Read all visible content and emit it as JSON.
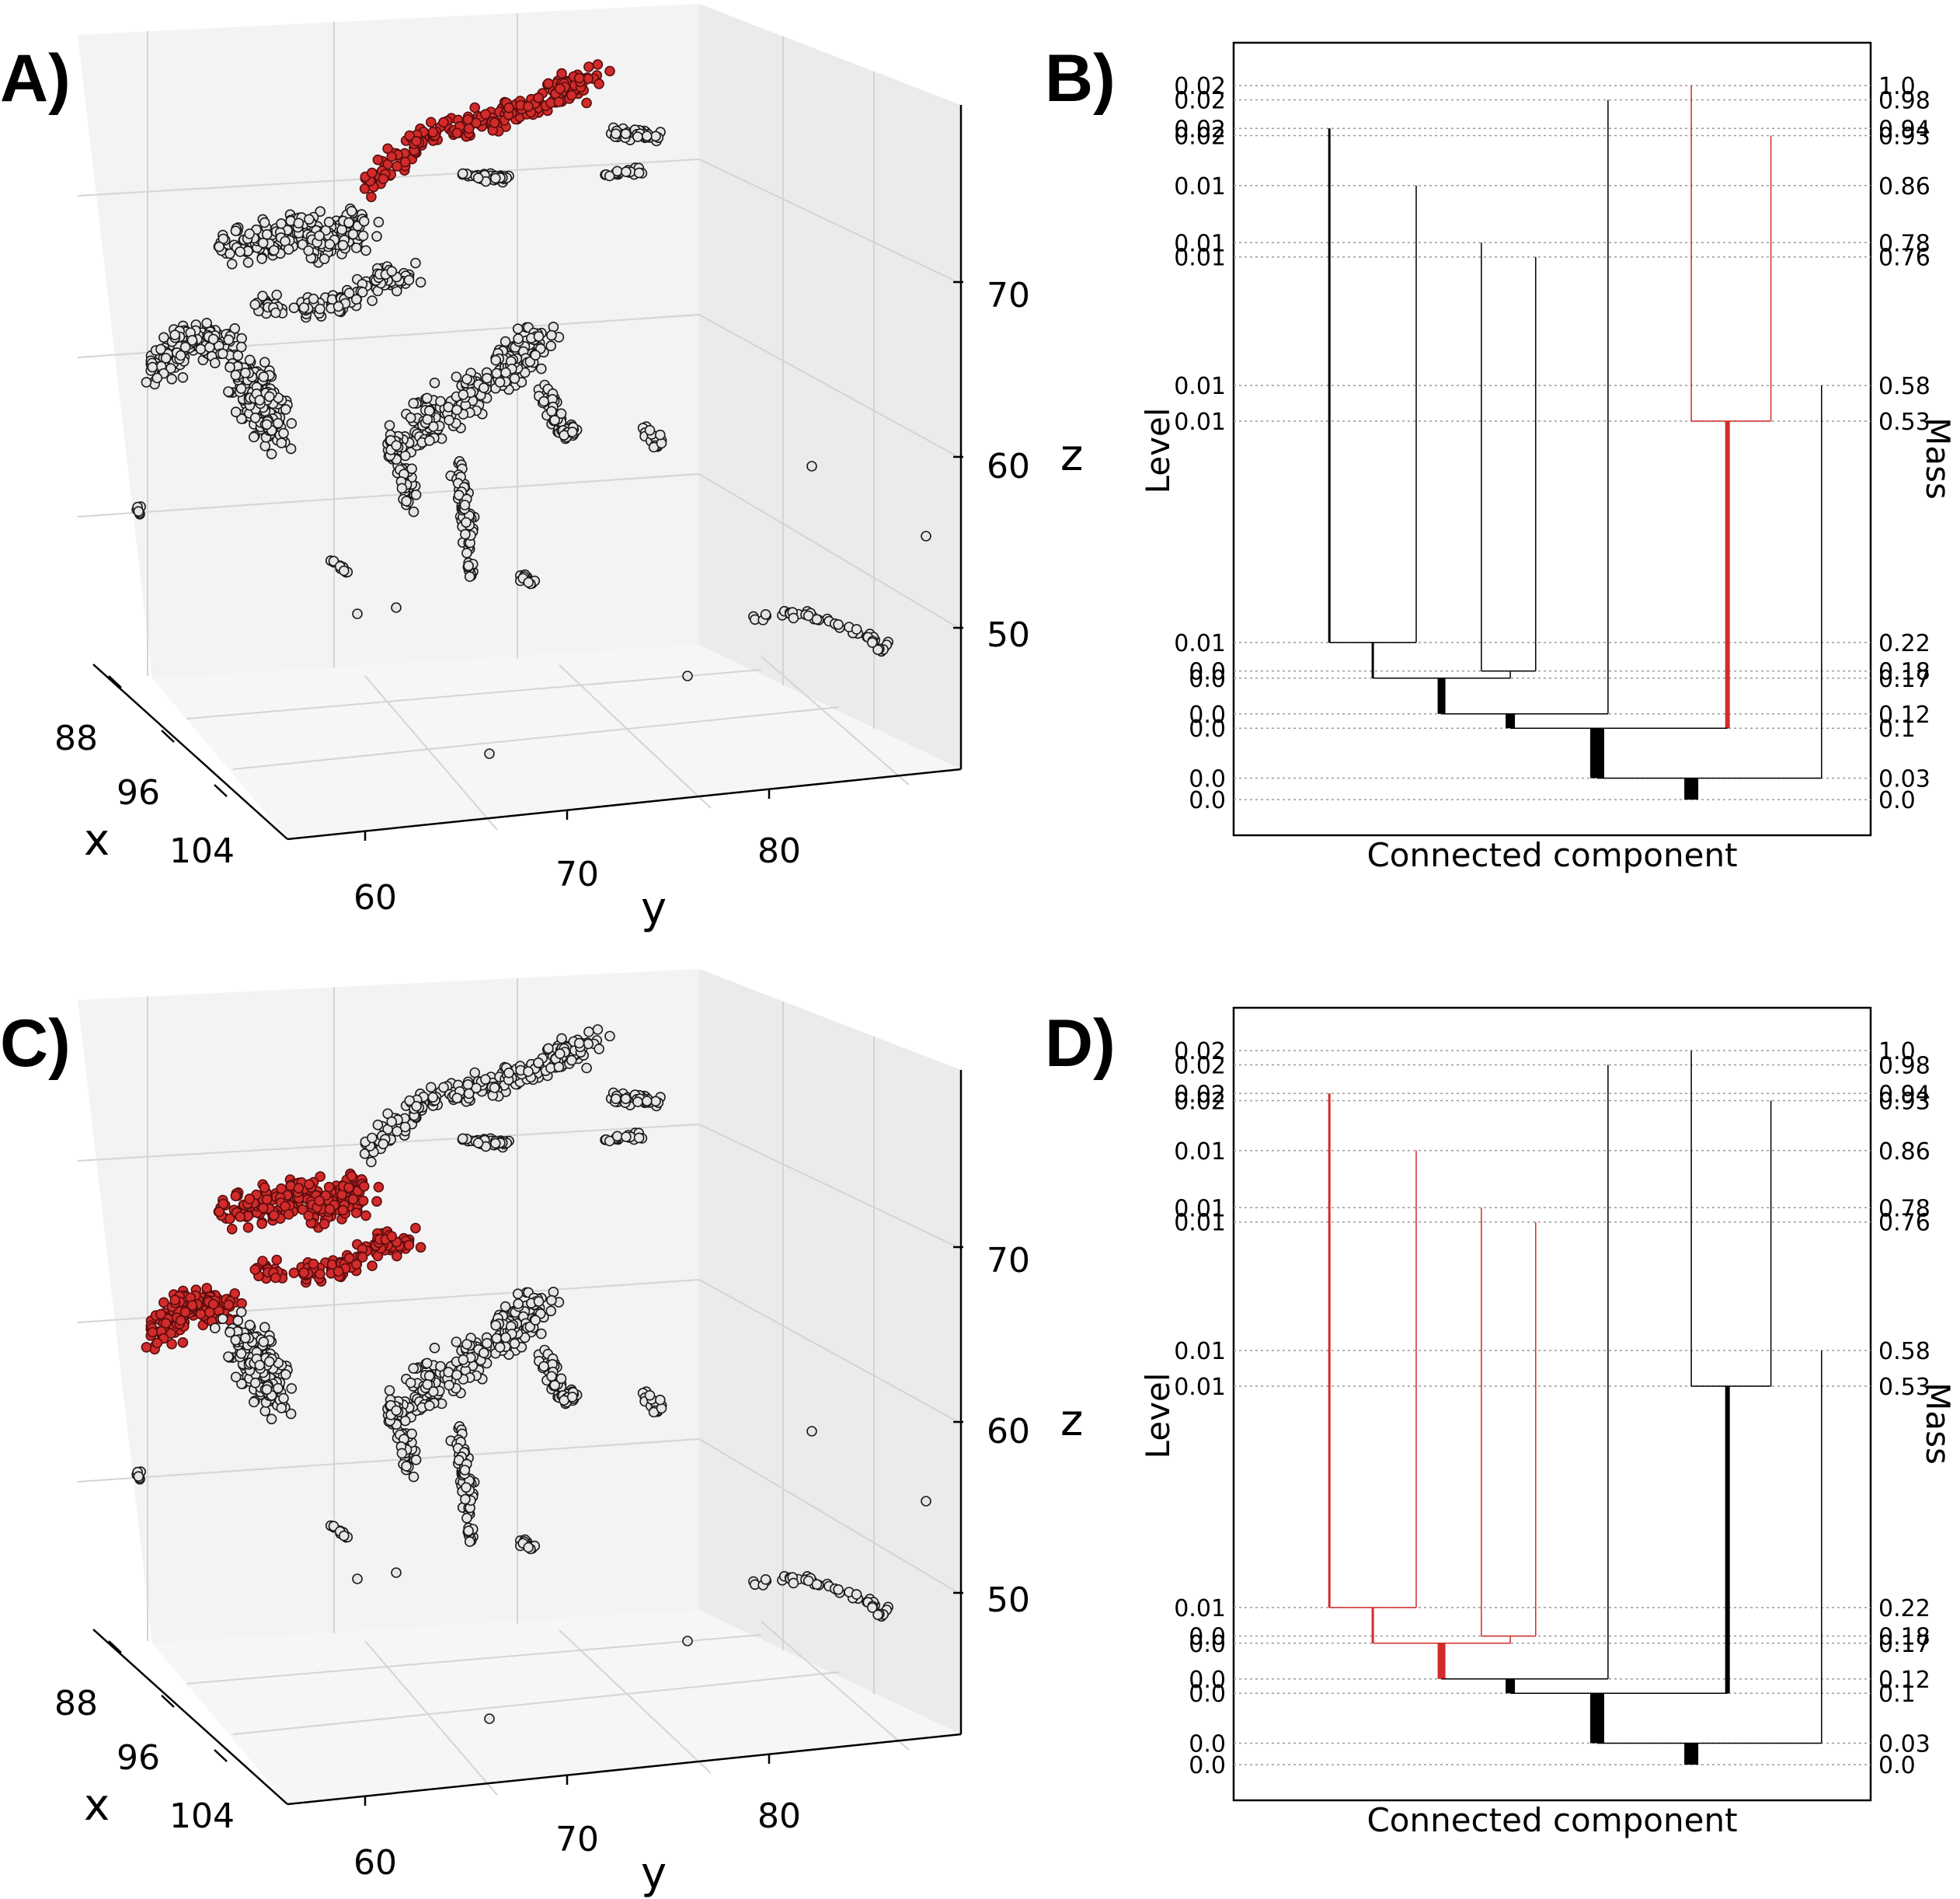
{
  "colors": {
    "highlight": "#d22b2b",
    "highlight_edge": "#5a0d0d",
    "point_fill": "#e6e6e6",
    "point_edge": "#1a1a1a",
    "pane_left": "#f3f3f3",
    "pane_right": "#ebebeb",
    "pane_floor": "#f6f6f6",
    "grid": "#d4d4d4",
    "line": "#000000",
    "dotted": "#9a9a9a"
  },
  "chart_data": [
    {
      "id": "A",
      "panel_label": "A)",
      "type": "scatter",
      "projection": "3d",
      "xlabel": "x",
      "ylabel": "y",
      "zlabel": "z",
      "x_ticks": [
        "88",
        "96",
        "104"
      ],
      "y_ticks": [
        "60",
        "70",
        "80"
      ],
      "z_ticks": [
        "70",
        "60",
        "50"
      ],
      "highlight_cluster": "top-right ridge"
    },
    {
      "id": "B",
      "panel_label": "B)",
      "type": "dendrogram",
      "title": "",
      "xlabel": "Connected component",
      "ylabel_left": "Level",
      "ylabel_right": "Mass",
      "level_ticks": [
        "0.02",
        "0.02",
        "0.02",
        "0.02",
        "0.01",
        "0.01",
        "0.01",
        "0.01",
        "0.01",
        "0.01",
        "0.0",
        "0.0",
        "0.0",
        "0.0",
        "0.0",
        "0.0"
      ],
      "mass_ticks": [
        "1.0",
        "0.98",
        "0.94",
        "0.93",
        "0.86",
        "0.78",
        "0.76",
        "0.58",
        "0.53",
        "0.22",
        "0.18",
        "0.17",
        "0.12",
        "0.1",
        "0.03",
        "0.0"
      ],
      "mass_values": [
        1.0,
        0.98,
        0.94,
        0.93,
        0.86,
        0.78,
        0.76,
        0.58,
        0.53,
        0.22,
        0.18,
        0.17,
        0.12,
        0.1,
        0.03,
        0.0
      ],
      "mass_range": [
        1.06,
        -0.05
      ],
      "highlight_branch": "right subtree merging at mass 0.1",
      "nodes": [
        {
          "id": "L1",
          "x": 1.0,
          "m0": 0.22,
          "m1": 0.94,
          "w": 3
        },
        {
          "id": "L2",
          "x": 2.2,
          "m0": 0.22,
          "m1": 0.86,
          "w": 1.5
        },
        {
          "id": "L3",
          "x": 3.1,
          "m0": 0.18,
          "m1": 0.78,
          "w": 1.5
        },
        {
          "id": "L4",
          "x": 3.85,
          "m0": 0.18,
          "m1": 0.76,
          "w": 1.5
        },
        {
          "id": "L5",
          "x": 4.85,
          "m0": 0.12,
          "m1": 0.98,
          "w": 1.5
        },
        {
          "id": "L6",
          "x": 6.0,
          "m0": 0.53,
          "m1": 1.0,
          "w": 1.5,
          "hl": true
        },
        {
          "id": "L7",
          "x": 7.1,
          "m0": 0.53,
          "m1": 0.93,
          "w": 1.5,
          "hl": true
        },
        {
          "id": "L8",
          "x": 7.8,
          "m0": 0.03,
          "m1": 0.58,
          "w": 1.5
        },
        {
          "id": "N1",
          "x": 1.6,
          "m0": 0.17,
          "m1": 0.22,
          "w": 3,
          "children": [
            "L1",
            "L2"
          ]
        },
        {
          "id": "N2",
          "x": 3.5,
          "m0": 0.17,
          "m1": 0.18,
          "w": 1.5,
          "children": [
            "L3",
            "L4"
          ]
        },
        {
          "id": "N3",
          "x": 2.55,
          "m0": 0.12,
          "m1": 0.17,
          "w": 10,
          "children": [
            "N1",
            "N2"
          ]
        },
        {
          "id": "N4",
          "x": 3.5,
          "m0": 0.1,
          "m1": 0.12,
          "w": 12,
          "children": [
            "N3",
            "L5"
          ]
        },
        {
          "id": "N5",
          "x": 6.5,
          "m0": 0.1,
          "m1": 0.53,
          "w": 6,
          "hl": true,
          "children": [
            "L6",
            "L7"
          ]
        },
        {
          "id": "N6",
          "x": 4.7,
          "m0": 0.03,
          "m1": 0.1,
          "w": 18,
          "children": [
            "N4",
            "N5"
          ]
        },
        {
          "id": "Root",
          "x": 6.0,
          "m0": 0.0,
          "m1": 0.03,
          "w": 18,
          "children": [
            "N6",
            "L8"
          ]
        }
      ]
    },
    {
      "id": "C",
      "panel_label": "C)",
      "type": "scatter",
      "projection": "3d",
      "xlabel": "x",
      "ylabel": "y",
      "zlabel": "z",
      "x_ticks": [
        "88",
        "96",
        "104"
      ],
      "y_ticks": [
        "60",
        "70",
        "80"
      ],
      "z_ticks": [
        "70",
        "60",
        "50"
      ],
      "highlight_cluster": "upper-left group"
    },
    {
      "id": "D",
      "panel_label": "D)",
      "type": "dendrogram",
      "title": "",
      "xlabel": "Connected component",
      "ylabel_left": "Level",
      "ylabel_right": "Mass",
      "level_ticks": [
        "0.02",
        "0.02",
        "0.02",
        "0.02",
        "0.01",
        "0.01",
        "0.01",
        "0.01",
        "0.01",
        "0.01",
        "0.0",
        "0.0",
        "0.0",
        "0.0",
        "0.0",
        "0.0"
      ],
      "mass_ticks": [
        "1.0",
        "0.98",
        "0.94",
        "0.93",
        "0.86",
        "0.78",
        "0.76",
        "0.58",
        "0.53",
        "0.22",
        "0.18",
        "0.17",
        "0.12",
        "0.1",
        "0.03",
        "0.0"
      ],
      "mass_values": [
        1.0,
        0.98,
        0.94,
        0.93,
        0.86,
        0.78,
        0.76,
        0.58,
        0.53,
        0.22,
        0.18,
        0.17,
        0.12,
        0.1,
        0.03,
        0.0
      ],
      "mass_range": [
        1.06,
        -0.05
      ],
      "highlight_branch": "left subtree merging at mass 0.12",
      "nodes": [
        {
          "id": "L1",
          "x": 1.0,
          "m0": 0.22,
          "m1": 0.94,
          "w": 3,
          "hl": true
        },
        {
          "id": "L2",
          "x": 2.2,
          "m0": 0.22,
          "m1": 0.86,
          "w": 1.5,
          "hl": true
        },
        {
          "id": "L3",
          "x": 3.1,
          "m0": 0.18,
          "m1": 0.78,
          "w": 1.5,
          "hl": true
        },
        {
          "id": "L4",
          "x": 3.85,
          "m0": 0.18,
          "m1": 0.76,
          "w": 1.5,
          "hl": true
        },
        {
          "id": "L5",
          "x": 4.85,
          "m0": 0.12,
          "m1": 0.98,
          "w": 1.5
        },
        {
          "id": "L6",
          "x": 6.0,
          "m0": 0.53,
          "m1": 1.0,
          "w": 1.5
        },
        {
          "id": "L7",
          "x": 7.1,
          "m0": 0.53,
          "m1": 0.93,
          "w": 1.5
        },
        {
          "id": "L8",
          "x": 7.8,
          "m0": 0.03,
          "m1": 0.58,
          "w": 1.5
        },
        {
          "id": "N1",
          "x": 1.6,
          "m0": 0.17,
          "m1": 0.22,
          "w": 3,
          "hl": true,
          "children": [
            "L1",
            "L2"
          ]
        },
        {
          "id": "N2",
          "x": 3.5,
          "m0": 0.17,
          "m1": 0.18,
          "w": 1.5,
          "hl": true,
          "children": [
            "L3",
            "L4"
          ]
        },
        {
          "id": "N3",
          "x": 2.55,
          "m0": 0.12,
          "m1": 0.17,
          "w": 10,
          "hl": true,
          "children": [
            "N1",
            "N2"
          ]
        },
        {
          "id": "N4",
          "x": 3.5,
          "m0": 0.1,
          "m1": 0.12,
          "w": 12,
          "children": [
            "N3",
            "L5"
          ]
        },
        {
          "id": "N5",
          "x": 6.5,
          "m0": 0.1,
          "m1": 0.53,
          "w": 6,
          "children": [
            "L6",
            "L7"
          ]
        },
        {
          "id": "N6",
          "x": 4.7,
          "m0": 0.03,
          "m1": 0.1,
          "w": 18,
          "children": [
            "N4",
            "N5"
          ]
        },
        {
          "id": "Root",
          "x": 6.0,
          "m0": 0.0,
          "m1": 0.03,
          "w": 18,
          "children": [
            "N6",
            "L8"
          ]
        }
      ]
    }
  ]
}
